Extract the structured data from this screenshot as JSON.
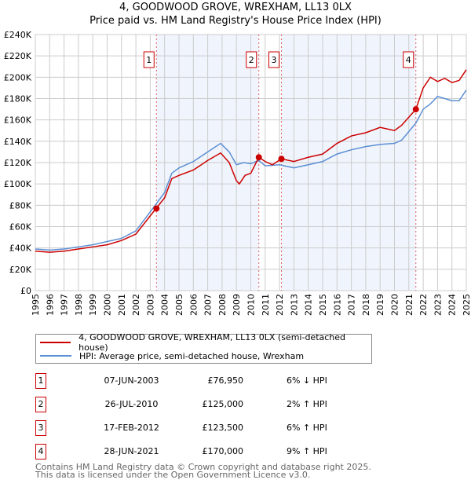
{
  "chart_data": {
    "type": "line",
    "title": "4, GOODWOOD GROVE, WREXHAM, LL13 0LX",
    "subtitle": "Price paid vs. HM Land Registry's House Price Index (HPI)",
    "xlabel": "",
    "ylabel": "",
    "xlim": [
      1995,
      2025
    ],
    "ylim": [
      0,
      240000
    ],
    "y_ticks": [
      "£0",
      "£20K",
      "£40K",
      "£60K",
      "£80K",
      "£100K",
      "£120K",
      "£140K",
      "£160K",
      "£180K",
      "£200K",
      "£220K",
      "£240K"
    ],
    "x_ticks": [
      "1995",
      "1996",
      "1997",
      "1998",
      "1999",
      "2000",
      "2001",
      "2002",
      "2003",
      "2004",
      "2005",
      "2006",
      "2007",
      "2008",
      "2009",
      "2010",
      "2011",
      "2012",
      "2013",
      "2014",
      "2015",
      "2016",
      "2017",
      "2018",
      "2019",
      "2020",
      "2021",
      "2022",
      "2023",
      "2024",
      "2025"
    ],
    "grid": true,
    "series": [
      {
        "name": "4, GOODWOOD GROVE, WREXHAM, LL13 0LX (semi-detached house)",
        "color": "#cc0000",
        "x": [
          1995,
          1996,
          1997,
          1998,
          1999,
          2000,
          2001,
          2002,
          2003.4,
          2004,
          2004.5,
          2005,
          2006,
          2007,
          2007.9,
          2008.5,
          2009,
          2009.2,
          2009.6,
          2010,
          2010.56,
          2011,
          2011.5,
          2012.13,
          2013,
          2014,
          2015,
          2016,
          2017,
          2018,
          2019,
          2020,
          2020.5,
          2021.49,
          2022,
          2022.5,
          2023,
          2023.5,
          2024,
          2024.5,
          2025
        ],
        "y": [
          37000,
          36000,
          37000,
          39000,
          41000,
          43000,
          47000,
          53000,
          76950,
          87000,
          105000,
          108000,
          113000,
          122000,
          129000,
          120000,
          103000,
          100000,
          108000,
          110000,
          125000,
          121000,
          118000,
          123500,
          121000,
          125000,
          128000,
          138000,
          145000,
          148000,
          153000,
          150000,
          155000,
          170000,
          190000,
          200000,
          196000,
          199000,
          195000,
          197000,
          207000
        ]
      },
      {
        "name": "HPI: Average price, semi-detached house, Wrexham",
        "color": "#5b8fd4",
        "x": [
          1995,
          1996,
          1997,
          1998,
          1999,
          2000,
          2001,
          2002,
          2003.4,
          2004,
          2004.5,
          2005,
          2006,
          2007,
          2007.9,
          2008.5,
          2009,
          2009.5,
          2010,
          2010.56,
          2011,
          2012,
          2013,
          2014,
          2015,
          2016,
          2017,
          2018,
          2019,
          2020,
          2020.5,
          2021.49,
          2022,
          2022.5,
          2023,
          2024,
          2024.5,
          2025
        ],
        "y": [
          39000,
          38000,
          39000,
          41000,
          43000,
          46000,
          49000,
          56000,
          81000,
          92000,
          110000,
          115000,
          121000,
          130000,
          138000,
          130000,
          118000,
          120000,
          119000,
          122000,
          117000,
          118000,
          115000,
          118000,
          121000,
          128000,
          132000,
          135000,
          137000,
          138000,
          141000,
          157000,
          170000,
          175000,
          182000,
          178000,
          178000,
          188000
        ]
      }
    ],
    "sales": [
      {
        "label": "1",
        "x": 2003.43,
        "y": 76950
      },
      {
        "label": "2",
        "x": 2010.56,
        "y": 125000
      },
      {
        "label": "3",
        "x": 2012.13,
        "y": 123500
      },
      {
        "label": "4",
        "x": 2021.49,
        "y": 170000
      }
    ],
    "shaded_spans": [
      [
        2003.43,
        2010.56
      ],
      [
        2012.13,
        2021.49
      ]
    ],
    "legend_placement": "below"
  },
  "table": [
    {
      "num": "1",
      "date": "07-JUN-2003",
      "price": "£76,950",
      "hpi": "6% ↓ HPI"
    },
    {
      "num": "2",
      "date": "26-JUL-2010",
      "price": "£125,000",
      "hpi": "2% ↑ HPI"
    },
    {
      "num": "3",
      "date": "17-FEB-2012",
      "price": "£123,500",
      "hpi": "6% ↑ HPI"
    },
    {
      "num": "4",
      "date": "28-JUN-2021",
      "price": "£170,000",
      "hpi": "9% ↑ HPI"
    }
  ],
  "footer": {
    "line1": "Contains HM Land Registry data © Crown copyright and database right 2025.",
    "line2": "This data is licensed under the Open Government Licence v3.0."
  }
}
